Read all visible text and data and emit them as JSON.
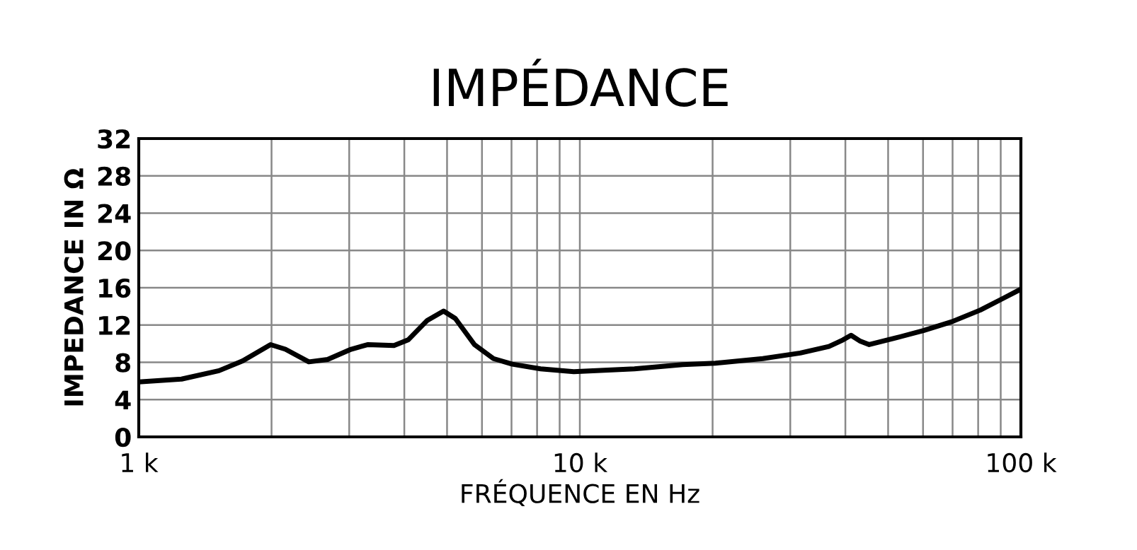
{
  "chart_data": {
    "type": "line",
    "title": "IMPÉDANCE",
    "xlabel": "FRÉQUENCE EN Hz",
    "ylabel": "IMPEDANCE IN Ω",
    "log": "x",
    "grid": true,
    "marker": "none",
    "line_style": "solid",
    "xlim": [
      1000,
      100000
    ],
    "ylim": [
      0,
      32
    ],
    "xticks": [
      {
        "value": 1000,
        "label": "1 k"
      },
      {
        "value": 2000,
        "label": null
      },
      {
        "value": 3000,
        "label": null
      },
      {
        "value": 4000,
        "label": null
      },
      {
        "value": 5000,
        "label": null
      },
      {
        "value": 6000,
        "label": null
      },
      {
        "value": 7000,
        "label": null
      },
      {
        "value": 8000,
        "label": null
      },
      {
        "value": 9000,
        "label": null
      },
      {
        "value": 10000,
        "label": "10 k"
      },
      {
        "value": 20000,
        "label": null
      },
      {
        "value": 30000,
        "label": null
      },
      {
        "value": 40000,
        "label": null
      },
      {
        "value": 50000,
        "label": null
      },
      {
        "value": 60000,
        "label": null
      },
      {
        "value": 70000,
        "label": null
      },
      {
        "value": 80000,
        "label": null
      },
      {
        "value": 90000,
        "label": null
      },
      {
        "value": 100000,
        "label": "100 k"
      }
    ],
    "yticks": [
      0,
      4,
      8,
      12,
      16,
      20,
      24,
      28,
      32
    ],
    "series": [
      {
        "color": "#000000",
        "x": [
          1000,
          1250,
          1520,
          1720,
          1990,
          2150,
          2430,
          2680,
          3030,
          3310,
          3790,
          4080,
          4510,
          4910,
          5220,
          5770,
          6370,
          7030,
          8150,
          9690,
          13300,
          17100,
          20300,
          26000,
          31600,
          36700,
          39500,
          41200,
          43100,
          45300,
          51900,
          60100,
          69700,
          80900,
          91500,
          100000
        ],
        "values": [
          5.9,
          6.2,
          7.1,
          8.15,
          9.9,
          9.4,
          8.05,
          8.3,
          9.4,
          9.9,
          9.8,
          10.4,
          12.5,
          13.5,
          12.7,
          9.9,
          8.4,
          7.8,
          7.3,
          7.0,
          7.3,
          7.75,
          7.9,
          8.4,
          9.0,
          9.7,
          10.4,
          10.9,
          10.3,
          9.9,
          10.6,
          11.4,
          12.35,
          13.6,
          14.9,
          15.85
        ]
      }
    ]
  }
}
